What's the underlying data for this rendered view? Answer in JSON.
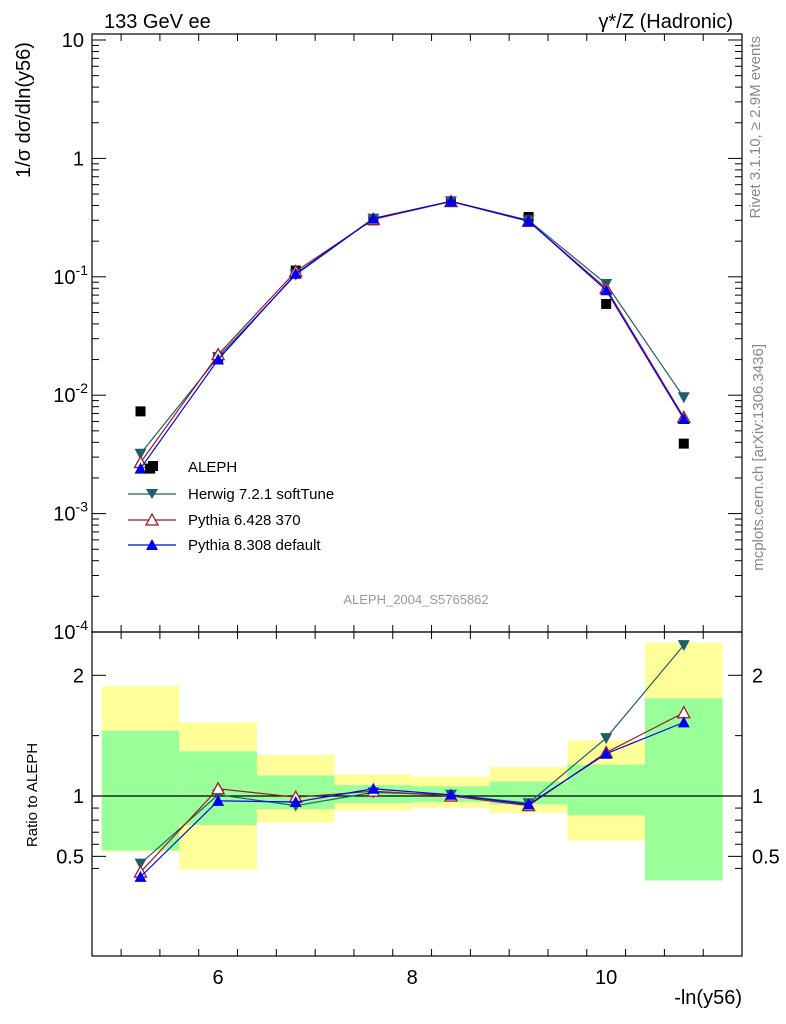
{
  "header": {
    "left": "133 GeV ee",
    "right": "γ*/Z (Hadronic)"
  },
  "side_text": {
    "rivet": "Rivet 3.1.10, ≥ 2.9M events",
    "mcplots": "mcplots.cern.ch [arXiv:1306.3436]"
  },
  "analysis_id": "ALEPH_2004_S5765862",
  "colors": {
    "aleph": "#000000",
    "herwig": "#1f5f6b",
    "pythia6": "#9b1c2a",
    "pythia8": "#0000ee",
    "band_yellow": "#ffff99",
    "band_green": "#99ff99"
  },
  "chart_data": [
    {
      "type": "line",
      "scale": "log",
      "ylabel": "1/σ  dσ/dln(y56)",
      "ylim": [
        0.0001,
        10
      ],
      "xlim": [
        4.7,
        11.4
      ],
      "y_tick_labels": [
        "10",
        "1",
        "10^-1",
        "10^-2",
        "10^-3",
        "10^-4"
      ],
      "legend": "bottom-left",
      "x": [
        5.2,
        6.0,
        6.8,
        7.6,
        8.4,
        9.2,
        10.0,
        10.8
      ],
      "series": [
        {
          "name": "ALEPH",
          "marker": "square",
          "values": [
            0.0073,
            0.021,
            0.113,
            0.3,
            0.43,
            0.32,
            0.059,
            0.0039
          ]
        },
        {
          "name": "Herwig 7.2.1 softTune",
          "marker": "triangle-down",
          "values": [
            0.0032,
            0.021,
            0.104,
            0.31,
            0.435,
            0.3,
            0.087,
            0.0096
          ]
        },
        {
          "name": "Pythia 6.428 370",
          "marker": "triangle-up-open",
          "values": [
            0.0027,
            0.022,
            0.111,
            0.305,
            0.432,
            0.294,
            0.08,
            0.0065
          ]
        },
        {
          "name": "Pythia 8.308 default",
          "marker": "triangle-up",
          "values": [
            0.0024,
            0.02,
            0.106,
            0.311,
            0.434,
            0.296,
            0.077,
            0.0063
          ]
        }
      ]
    },
    {
      "type": "line",
      "ylabel": "Ratio to ALEPH",
      "xlabel": "-ln(y56)",
      "ylim": [
        0.33,
        2.25
      ],
      "x_ticks": [
        "6",
        "8",
        "10"
      ],
      "y_ticks": [
        "0.5",
        "1",
        "2"
      ],
      "x": [
        5.2,
        6.0,
        6.8,
        7.6,
        8.4,
        9.2,
        10.0,
        10.8
      ],
      "bins": [
        [
          4.8,
          5.6
        ],
        [
          5.6,
          6.4
        ],
        [
          6.4,
          7.2
        ],
        [
          7.2,
          8.0
        ],
        [
          8.0,
          8.8
        ],
        [
          8.8,
          9.6
        ],
        [
          9.6,
          10.4
        ],
        [
          10.4,
          11.2
        ]
      ],
      "band_yellow": [
        [
          0.54,
          1.91
        ],
        [
          0.39,
          1.61
        ],
        [
          0.78,
          1.34
        ],
        [
          0.88,
          1.18
        ],
        [
          0.9,
          1.16
        ],
        [
          0.86,
          1.24
        ],
        [
          0.63,
          1.46
        ],
        [
          0.3,
          2.27
        ]
      ],
      "band_green": [
        [
          0.55,
          1.54
        ],
        [
          0.76,
          1.37
        ],
        [
          0.89,
          1.17
        ],
        [
          0.94,
          1.09
        ],
        [
          0.95,
          1.08
        ],
        [
          0.93,
          1.12
        ],
        [
          0.84,
          1.26
        ],
        [
          0.3,
          1.81
        ]
      ],
      "series": [
        {
          "name": "Herwig 7.2.1 softTune",
          "values": [
            0.44,
            1.01,
            0.92,
            1.03,
            1.01,
            0.94,
            1.48,
            2.25
          ]
        },
        {
          "name": "Pythia 6.428 370",
          "values": [
            0.37,
            1.06,
            0.99,
            1.04,
            1.0,
            0.92,
            1.36,
            1.69
          ]
        },
        {
          "name": "Pythia 8.308 default",
          "values": [
            0.33,
            0.96,
            0.95,
            1.06,
            1.01,
            0.93,
            1.35,
            1.61
          ]
        }
      ]
    }
  ]
}
